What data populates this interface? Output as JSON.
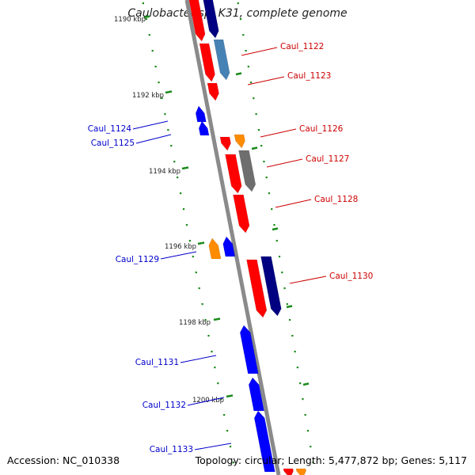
{
  "title": "Caulobacter sp. K31, complete genome",
  "accession": "Accession: NC_010338",
  "summary": "Topology: circular; Length: 5,477,872 bp; Genes: 5,117",
  "colors": {
    "backbone": "#888888",
    "tick": "#1a8a1a",
    "label_forward": "#cc0000",
    "label_reverse": "#0000cc",
    "red": "#ff0000",
    "blue": "#0000ff",
    "navy": "#000080",
    "steelblue": "#4682b4",
    "orange": "#ff8c00",
    "grey": "#6e6e6e"
  },
  "kbp_ticks": [
    {
      "label": "1190 kbp"
    },
    {
      "label": "1192 kbp"
    },
    {
      "label": "1194 kbp"
    },
    {
      "label": "1196 kbp"
    },
    {
      "label": "1198 kbp"
    },
    {
      "label": "1200 kbp"
    }
  ],
  "gene_labels": [
    {
      "text": "Caul_1122",
      "strand": "forward"
    },
    {
      "text": "Caul_1123",
      "strand": "forward"
    },
    {
      "text": "Caul_1124",
      "strand": "reverse"
    },
    {
      "text": "Caul_1125",
      "strand": "reverse"
    },
    {
      "text": "Caul_1126",
      "strand": "forward"
    },
    {
      "text": "Caul_1127",
      "strand": "forward"
    },
    {
      "text": "Caul_1128",
      "strand": "forward"
    },
    {
      "text": "Caul_1129",
      "strand": "reverse"
    },
    {
      "text": "Caul_1130",
      "strand": "forward"
    },
    {
      "text": "Caul_1131",
      "strand": "reverse"
    },
    {
      "text": "Caul_1132",
      "strand": "reverse"
    },
    {
      "text": "Caul_1133",
      "strand": "reverse"
    }
  ]
}
